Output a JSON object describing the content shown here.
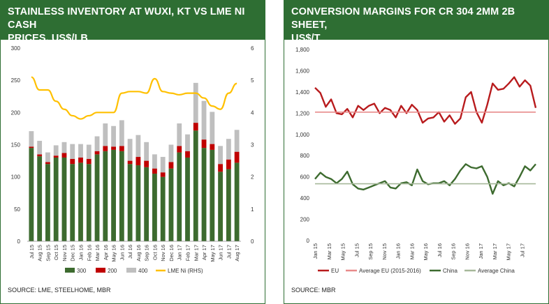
{
  "colors": {
    "title_bg": "#2e6e33",
    "bar_300": "#3d6b2f",
    "bar_200": "#c00000",
    "bar_400": "#bfbfbf",
    "lme_ni": "#ffc000",
    "eu": "#b81b1d",
    "avg_eu": "#e88a8a",
    "china": "#3d6b2f",
    "avg_china": "#a6b89a"
  },
  "chart_data": [
    {
      "type": "bar",
      "title": "STAINLESS INVENTORY AT WUXI, KT VS LME NI CASH PRICES, US$/LB",
      "title_lines": [
        "STAINLESS INVENTORY AT WUXI, KT VS LME NI CASH",
        "PRICES, US$/LB"
      ],
      "source": "SOURCE: LME, STEELHOME, MBR",
      "stacked": true,
      "categories": [
        "Jul 15",
        "Aug 15",
        "Sep 15",
        "Oct 15",
        "Nov 15",
        "Dec 15",
        "Jan 16",
        "Feb 16",
        "Mar 16",
        "Apr 16",
        "May 16",
        "Jun 16",
        "Jul 16",
        "Aug 16",
        "Sep 16",
        "Oct 16",
        "Nov 16",
        "Dec 16",
        "Jan 17",
        "Feb 17",
        "Mar 17",
        "Apr 17",
        "May 17",
        "Jun 17",
        "Jul 17",
        "Aug 17"
      ],
      "x_tick_labels": [
        "Jul 15",
        "Aug 15",
        "Sep 15",
        "Oct 15",
        "Nov 15",
        "Dec 15",
        "Jan 16",
        "Feb 16",
        "Mar 16",
        "Apr 16",
        "May 16",
        "Jun 16",
        "Jul 16",
        "Aug 16",
        "Sep 16",
        "Oct 16",
        "Nov 16",
        "Dec 16",
        "Jan 17",
        "Feb 17",
        "Mar 17",
        "Apr 17",
        "May 17",
        "Jun 17",
        "Jul 17",
        "Aug 17"
      ],
      "series": [
        {
          "name": "300",
          "values": [
            145,
            132,
            120,
            130,
            130,
            120,
            122,
            120,
            135,
            140,
            142,
            140,
            120,
            118,
            115,
            105,
            100,
            113,
            138,
            130,
            172,
            145,
            142,
            108,
            112,
            122
          ]
        },
        {
          "name": "200",
          "values": [
            2,
            3,
            3,
            3,
            7,
            8,
            8,
            8,
            5,
            8,
            5,
            8,
            5,
            13,
            10,
            8,
            7,
            10,
            10,
            10,
            12,
            13,
            9,
            12,
            15,
            17
          ]
        },
        {
          "name": "400",
          "values": [
            24,
            21,
            15,
            16,
            17,
            23,
            21,
            22,
            23,
            35,
            32,
            40,
            34,
            34,
            29,
            22,
            24,
            27,
            35,
            26,
            62,
            60,
            50,
            28,
            32,
            34
          ]
        }
      ],
      "line_series": [
        {
          "name": "LME Ni (RHS)",
          "values": [
            5.1,
            4.7,
            4.7,
            4.35,
            4.1,
            3.9,
            3.8,
            3.9,
            4.0,
            4.0,
            4.0,
            4.6,
            4.65,
            4.65,
            4.6,
            5.05,
            4.65,
            4.6,
            4.55,
            4.6,
            4.6,
            4.45,
            4.2,
            4.1,
            4.6,
            4.9
          ]
        }
      ],
      "legend": [
        "300",
        "200",
        "400",
        "LME Ni (RHS)"
      ],
      "legend_position": "bottom",
      "ylim": [
        0,
        300
      ],
      "y_ticks": [
        "0",
        "50",
        "100",
        "150",
        "200",
        "250",
        "300"
      ],
      "y2lim": [
        0,
        6
      ],
      "y2_ticks": [
        "0",
        "1",
        "2",
        "3",
        "4",
        "5",
        "6"
      ]
    },
    {
      "type": "line",
      "title": "CONVERSION MARGINS FOR CR 304 2MM 2B SHEET, US$/T",
      "title_lines": [
        "CONVERSION MARGINS FOR CR 304 2MM 2B SHEET,",
        "US$/T"
      ],
      "source": "SOURCE:  MBR",
      "x_tick_labels": [
        "Jan 15",
        "Mar 15",
        "May 15",
        "Jul 15",
        "Sep 15",
        "Nov 15",
        "Jan 16",
        "Mar 16",
        "May 16",
        "Jul 16",
        "Sep 16",
        "Nov 16",
        "Jan 17",
        "Mar 17",
        "May 17",
        "Jul 17"
      ],
      "ylim": [
        0,
        1800
      ],
      "y_ticks": [
        "0",
        "200",
        "400",
        "600",
        "800",
        "1,000",
        "1,200",
        "1,400",
        "1,600",
        "1,800"
      ],
      "series": [
        {
          "name": "EU",
          "values": [
            1440,
            1390,
            1260,
            1330,
            1200,
            1190,
            1240,
            1160,
            1270,
            1230,
            1270,
            1290,
            1200,
            1250,
            1230,
            1160,
            1270,
            1200,
            1280,
            1230,
            1110,
            1150,
            1160,
            1210,
            1120,
            1180,
            1100,
            1150,
            1350,
            1400,
            1210,
            1110,
            1280,
            1480,
            1420,
            1430,
            1480,
            1540,
            1450,
            1510,
            1460,
            1250
          ]
        },
        {
          "name": "Average EU (2015-2016)",
          "values": [
            1210,
            1210
          ]
        },
        {
          "name": "China",
          "values": [
            580,
            640,
            600,
            580,
            540,
            580,
            650,
            530,
            490,
            480,
            500,
            520,
            540,
            560,
            500,
            490,
            540,
            550,
            520,
            670,
            560,
            530,
            540,
            540,
            560,
            520,
            580,
            660,
            720,
            690,
            680,
            700,
            600,
            440,
            560,
            520,
            540,
            510,
            600,
            700,
            660,
            720
          ]
        },
        {
          "name": "Average China",
          "values": [
            535,
            535
          ]
        }
      ],
      "legend": [
        "EU",
        "Average EU (2015-2016)",
        "China",
        "Average China"
      ],
      "legend_position": "bottom"
    }
  ]
}
